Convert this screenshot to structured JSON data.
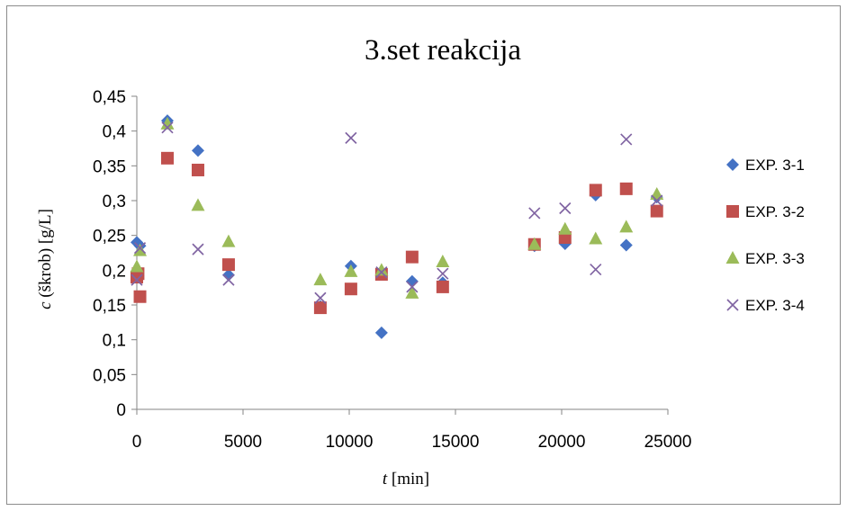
{
  "chart_data": {
    "type": "scatter",
    "title": "3.set reakcija",
    "xlabel_var": "t",
    "xlabel_unit": " [min]",
    "ylabel_var": "c",
    "ylabel_unit": " (škrob) [g/L]",
    "xlim": [
      0,
      25000
    ],
    "ylim": [
      0,
      0.45
    ],
    "x_ticks": [
      0,
      5000,
      10000,
      15000,
      20000,
      25000
    ],
    "x_tick_labels": [
      "0",
      "5000",
      "10000",
      "15000",
      "20000",
      "25000"
    ],
    "y_ticks": [
      0,
      0.05,
      0.1,
      0.15,
      0.2,
      0.25,
      0.3,
      0.35,
      0.4,
      0.45
    ],
    "y_tick_labels": [
      "0",
      "0,05",
      "0,1",
      "0,15",
      "0,2",
      "0,25",
      "0,3",
      "0,35",
      "0,4",
      "0,45"
    ],
    "grid": false,
    "legend_position": "right",
    "series": [
      {
        "name": "EXP. 3-1",
        "marker": "diamond",
        "color": "#4472C4",
        "points": [
          [
            0,
            0.24
          ],
          [
            60,
            0.192
          ],
          [
            150,
            0.235
          ],
          [
            1440,
            0.415
          ],
          [
            2880,
            0.372
          ],
          [
            4320,
            0.193
          ],
          [
            8640,
            0.148
          ],
          [
            10080,
            0.206
          ],
          [
            11520,
            0.11
          ],
          [
            12960,
            0.184
          ],
          [
            14400,
            0.182
          ],
          [
            18720,
            0.235
          ],
          [
            20160,
            0.238
          ],
          [
            21600,
            0.308
          ],
          [
            23040,
            0.236
          ],
          [
            24480,
            0.305
          ]
        ]
      },
      {
        "name": "EXP. 3-2",
        "marker": "square",
        "color": "#C0504D",
        "points": [
          [
            0,
            0.19
          ],
          [
            60,
            0.195
          ],
          [
            150,
            0.162
          ],
          [
            1440,
            0.361
          ],
          [
            2880,
            0.344
          ],
          [
            4320,
            0.208
          ],
          [
            8640,
            0.146
          ],
          [
            10080,
            0.173
          ],
          [
            11520,
            0.194
          ],
          [
            12960,
            0.219
          ],
          [
            14400,
            0.176
          ],
          [
            18720,
            0.237
          ],
          [
            20160,
            0.247
          ],
          [
            21600,
            0.315
          ],
          [
            23040,
            0.317
          ],
          [
            24480,
            0.285
          ]
        ]
      },
      {
        "name": "EXP. 3-3",
        "marker": "triangle",
        "color": "#9BBB59",
        "points": [
          [
            0,
            0.205
          ],
          [
            150,
            0.228
          ],
          [
            1440,
            0.41
          ],
          [
            2880,
            0.293
          ],
          [
            4320,
            0.241
          ],
          [
            8640,
            0.186
          ],
          [
            10080,
            0.198
          ],
          [
            11520,
            0.2
          ],
          [
            12960,
            0.167
          ],
          [
            14400,
            0.212
          ],
          [
            18720,
            0.237
          ],
          [
            20160,
            0.259
          ],
          [
            21600,
            0.245
          ],
          [
            23040,
            0.262
          ],
          [
            24480,
            0.309
          ]
        ]
      },
      {
        "name": "EXP. 3-4",
        "marker": "x",
        "color": "#8064A2",
        "points": [
          [
            0,
            0.186
          ],
          [
            150,
            0.232
          ],
          [
            1440,
            0.405
          ],
          [
            2880,
            0.23
          ],
          [
            4320,
            0.186
          ],
          [
            8640,
            0.16
          ],
          [
            10080,
            0.39
          ],
          [
            11520,
            0.197
          ],
          [
            12960,
            0.176
          ],
          [
            14400,
            0.195
          ],
          [
            18720,
            0.282
          ],
          [
            20160,
            0.289
          ],
          [
            21600,
            0.201
          ],
          [
            23040,
            0.388
          ],
          [
            24480,
            0.3
          ]
        ]
      }
    ]
  }
}
